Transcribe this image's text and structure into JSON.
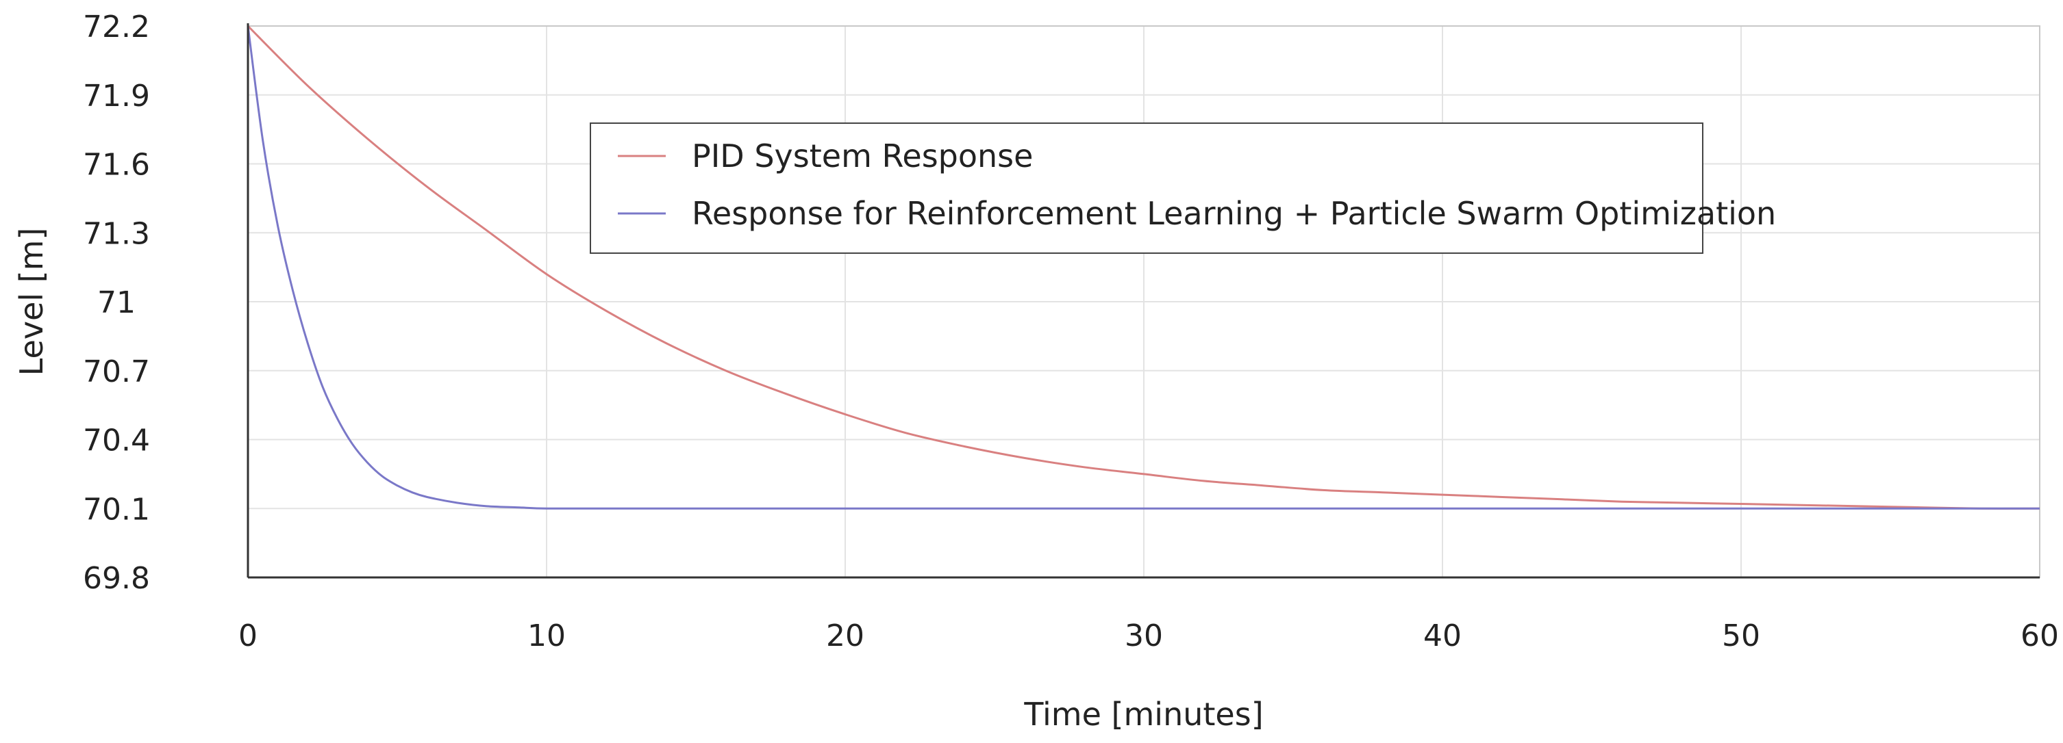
{
  "chart_data": {
    "type": "line",
    "title": "",
    "xlabel": "Time [minutes]",
    "ylabel": "Level [m]",
    "xlim": [
      0,
      60
    ],
    "ylim": [
      69.8,
      72.2
    ],
    "x_ticks": [
      "0",
      "10",
      "20",
      "30",
      "40",
      "50",
      "60"
    ],
    "y_ticks": [
      "72.2",
      "71.9",
      "71.6",
      "71.3",
      "71",
      "70.7",
      "70.4",
      "70.1",
      "69.8"
    ],
    "grid": true,
    "legend_position": "top-center",
    "series": [
      {
        "name": "PID System Response",
        "color": "#d98080",
        "x": [
          0,
          2,
          4,
          6,
          8,
          10,
          12,
          14,
          16,
          18,
          20,
          22,
          24,
          26,
          28,
          30,
          32,
          34,
          36,
          38,
          40,
          42,
          44,
          46,
          48,
          50,
          52,
          54,
          56,
          58,
          60
        ],
        "y": [
          72.2,
          71.94,
          71.71,
          71.5,
          71.31,
          71.12,
          70.96,
          70.82,
          70.7,
          70.6,
          70.51,
          70.43,
          70.37,
          70.32,
          70.28,
          70.25,
          70.22,
          70.2,
          70.18,
          70.17,
          70.16,
          70.15,
          70.14,
          70.13,
          70.125,
          70.12,
          70.115,
          70.11,
          70.105,
          70.1,
          70.1
        ]
      },
      {
        "name": "Response for Reinforcement Learning + Particle Swarm Optimization",
        "color": "#7a78c8",
        "x": [
          0,
          0.5,
          1,
          1.5,
          2,
          2.5,
          3,
          3.5,
          4,
          4.5,
          5,
          5.5,
          6,
          7,
          8,
          9,
          10,
          12,
          15,
          20,
          30,
          40,
          50,
          60
        ],
        "y": [
          72.2,
          71.7,
          71.33,
          71.05,
          70.82,
          70.63,
          70.49,
          70.38,
          70.3,
          70.24,
          70.2,
          70.17,
          70.15,
          70.125,
          70.11,
          70.105,
          70.1,
          70.1,
          70.1,
          70.1,
          70.1,
          70.1,
          70.1,
          70.1
        ]
      }
    ]
  }
}
